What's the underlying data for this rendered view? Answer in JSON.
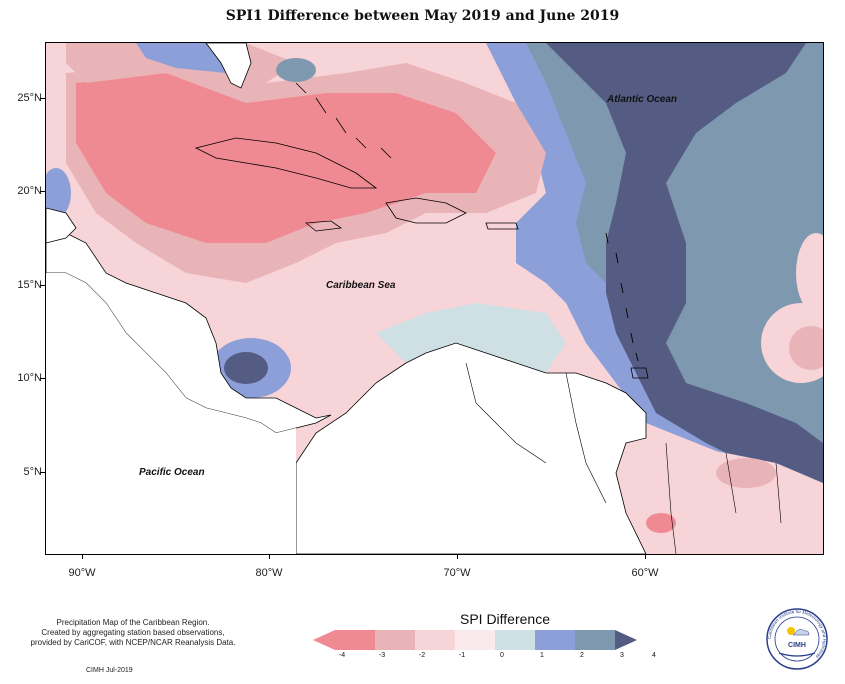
{
  "title": "SPI1 Difference between May 2019 and June 2019",
  "axes": {
    "y_ticks": [
      "25°N",
      "20°N",
      "15°N",
      "10°N",
      "5°N"
    ],
    "x_ticks": [
      "90°W",
      "80°W",
      "70°W",
      "60°W"
    ]
  },
  "ocean_labels": {
    "atlantic": "Atlantic Ocean",
    "caribbean": "Caribbean Sea",
    "pacific": "Pacific Ocean"
  },
  "footer": {
    "line1": "Precipitation Map of the Caribbean Region.",
    "line2": "Created by aggregating station based observations,",
    "line3": "provided by CariCOF, with NCEP/NCAR Reanalysis Data.",
    "credit": "CIMH Jul-2019"
  },
  "legend": {
    "title": "SPI Difference",
    "ticks": [
      "-4",
      "-3",
      "-2",
      "-1",
      "0",
      "1",
      "2",
      "3",
      "4"
    ],
    "colors": [
      "#f08a92",
      "#e9b4b8",
      "#f7d4d8",
      "#fbeaec",
      "#cfe0e4",
      "#8d9fd8",
      "#7e98b0",
      "#545c84"
    ]
  },
  "logo": {
    "name": "CIMH",
    "ring_text": "Caribbean Institute for Meteorology and Hydrology"
  },
  "colors": {
    "strong_positive": "#545c84",
    "positive": "#7e98b0",
    "mild_positive": "#8d9fd8",
    "neutral": "#cfe0e4",
    "near_zero_neg": "#fbeaec",
    "mild_negative": "#f7d4d8",
    "negative": "#e9b4b8",
    "strong_negative": "#f08a92"
  }
}
